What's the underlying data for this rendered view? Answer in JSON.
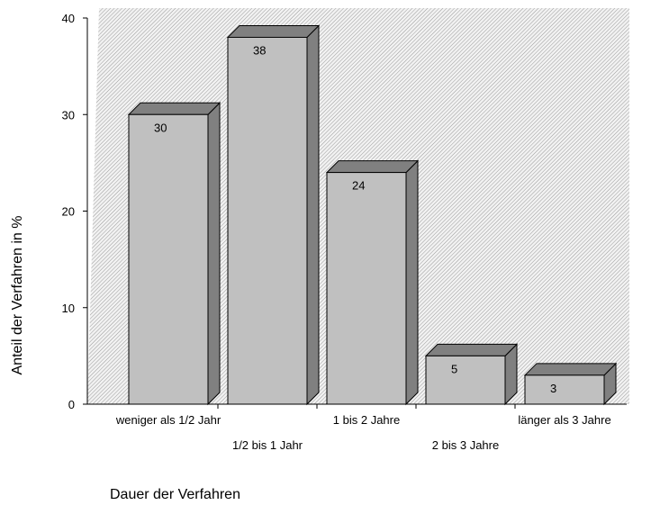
{
  "chart_data": {
    "type": "bar",
    "style": "3d",
    "categories": [
      "weniger als 1/2 Jahr",
      "1/2 bis 1 Jahr",
      "1 bis 2 Jahre",
      "2 bis 3 Jahre",
      "länger als 3 Jahre"
    ],
    "values": [
      30,
      38,
      24,
      5,
      3
    ],
    "data_labels": [
      "30",
      "38",
      "24",
      "5",
      "3"
    ],
    "xlabel": "Dauer der Verfahren",
    "ylabel": "Anteil der Verfahren in %",
    "ylim": [
      0,
      40
    ],
    "yticks": [
      0,
      10,
      20,
      30,
      40
    ],
    "ytick_labels": [
      "0",
      "10",
      "20",
      "30",
      "40"
    ],
    "grid": false,
    "legend": "none",
    "colors": {
      "bar_front": "#c0c0c0",
      "bar_top": "#808080",
      "bar_side": "#808080",
      "plot_background": "hatched-gray"
    }
  }
}
